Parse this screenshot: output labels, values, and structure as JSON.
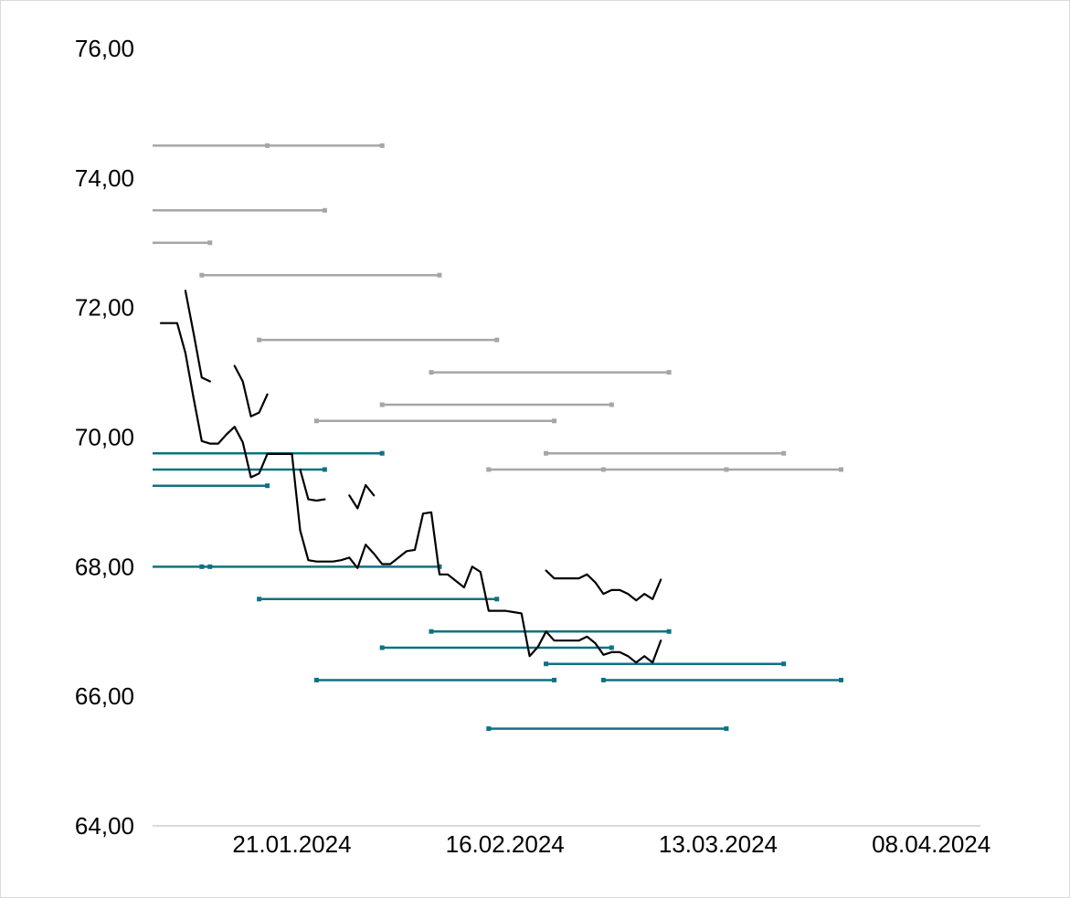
{
  "chart_data": {
    "type": "line",
    "title": "",
    "xlabel": "",
    "ylabel": "",
    "y_ticks": [
      "64,00",
      "66,00",
      "68,00",
      "70,00",
      "72,00",
      "74,00",
      "76,00"
    ],
    "x_ticks": [
      "21.01.2024",
      "16.02.2024",
      "13.03.2024",
      "08.04.2024"
    ],
    "ylim": [
      64,
      76
    ],
    "xlim": [
      "2024-01-04",
      "2024-04-14"
    ],
    "grid": false,
    "legend": "none",
    "colors": {
      "price": "#000000",
      "upper_bands": "#a6a6a6",
      "lower_bands": "#0e7282",
      "axis": "#d9d9d9"
    },
    "series": [
      {
        "color": "#000000",
        "points": [
          [
            "2024-01-05",
            71.76
          ],
          [
            "2024-01-06",
            71.76
          ],
          [
            "2024-01-07",
            71.76
          ],
          [
            "2024-01-08",
            71.3
          ],
          [
            "2024-01-09",
            70.6
          ],
          [
            "2024-01-10",
            69.94
          ],
          [
            "2024-01-11",
            69.9
          ],
          [
            "2024-01-12",
            69.9
          ],
          [
            "2024-01-13",
            70.04
          ],
          [
            "2024-01-14",
            70.16
          ],
          [
            "2024-01-15",
            69.92
          ],
          [
            "2024-01-16",
            69.38
          ],
          [
            "2024-01-17",
            69.44
          ],
          [
            "2024-01-18",
            69.74
          ],
          [
            "2024-01-19",
            69.74
          ],
          [
            "2024-01-20",
            69.74
          ],
          [
            "2024-01-21",
            69.74
          ],
          [
            "2024-01-22",
            68.56
          ],
          [
            "2024-01-23",
            68.1
          ],
          [
            "2024-01-24",
            68.08
          ],
          [
            "2024-01-25",
            68.08
          ],
          [
            "2024-01-26",
            68.08
          ],
          [
            "2024-01-27",
            68.1
          ],
          [
            "2024-01-28",
            68.14
          ],
          [
            "2024-01-29",
            67.98
          ],
          [
            "2024-01-30",
            68.34
          ],
          [
            "2024-01-31",
            68.2
          ],
          [
            "2024-02-01",
            68.04
          ],
          [
            "2024-02-02",
            68.04
          ],
          [
            "2024-02-03",
            68.14
          ],
          [
            "2024-02-04",
            68.24
          ],
          [
            "2024-02-05",
            68.26
          ],
          [
            "2024-02-06",
            68.82
          ],
          [
            "2024-02-07",
            68.84
          ],
          [
            "2024-02-08",
            67.88
          ],
          [
            "2024-02-09",
            67.88
          ],
          [
            "2024-02-10",
            67.78
          ],
          [
            "2024-02-11",
            67.68
          ],
          [
            "2024-02-12",
            68.0
          ],
          [
            "2024-02-13",
            67.92
          ],
          [
            "2024-02-14",
            67.32
          ],
          [
            "2024-02-15",
            67.32
          ],
          [
            "2024-02-16",
            67.32
          ],
          [
            "2024-02-17",
            67.3
          ],
          [
            "2024-02-18",
            67.28
          ],
          [
            "2024-02-19",
            66.62
          ],
          [
            "2024-02-20",
            66.76
          ],
          [
            "2024-02-21",
            67.0
          ],
          [
            "2024-02-22",
            66.86
          ],
          [
            "2024-02-23",
            66.86
          ],
          [
            "2024-02-24",
            66.86
          ],
          [
            "2024-02-25",
            66.86
          ],
          [
            "2024-02-26",
            66.92
          ],
          [
            "2024-02-27",
            66.82
          ],
          [
            "2024-02-28",
            66.64
          ],
          [
            "2024-02-29",
            66.68
          ],
          [
            "2024-03-01",
            66.68
          ],
          [
            "2024-03-02",
            66.62
          ],
          [
            "2024-03-03",
            66.52
          ],
          [
            "2024-03-04",
            66.62
          ],
          [
            "2024-03-05",
            66.52
          ],
          [
            "2024-03-06",
            66.86
          ]
        ]
      },
      {
        "color": "#000000",
        "points": [
          [
            "2024-01-08",
            72.26
          ],
          [
            "2024-01-09",
            71.6
          ],
          [
            "2024-01-10",
            70.92
          ],
          [
            "2024-01-11",
            70.86
          ]
        ]
      },
      {
        "color": "#000000",
        "points": [
          [
            "2024-01-14",
            71.1
          ],
          [
            "2024-01-15",
            70.86
          ],
          [
            "2024-01-16",
            70.32
          ],
          [
            "2024-01-17",
            70.38
          ],
          [
            "2024-01-18",
            70.66
          ]
        ]
      },
      {
        "color": "#000000",
        "points": [
          [
            "2024-01-22",
            69.5
          ],
          [
            "2024-01-23",
            69.04
          ],
          [
            "2024-01-24",
            69.02
          ],
          [
            "2024-01-25",
            69.04
          ]
        ]
      },
      {
        "color": "#000000",
        "points": [
          [
            "2024-01-28",
            69.1
          ],
          [
            "2024-01-29",
            68.9
          ],
          [
            "2024-01-30",
            69.26
          ],
          [
            "2024-01-31",
            69.1
          ]
        ]
      },
      {
        "color": "#000000",
        "points": [
          [
            "2024-02-21",
            67.94
          ],
          [
            "2024-02-22",
            67.82
          ],
          [
            "2024-02-23",
            67.82
          ],
          [
            "2024-02-24",
            67.82
          ],
          [
            "2024-02-25",
            67.82
          ],
          [
            "2024-02-26",
            67.88
          ],
          [
            "2024-02-27",
            67.76
          ],
          [
            "2024-02-28",
            67.58
          ],
          [
            "2024-02-29",
            67.64
          ],
          [
            "2024-03-01",
            67.64
          ],
          [
            "2024-03-02",
            67.58
          ],
          [
            "2024-03-03",
            67.48
          ],
          [
            "2024-03-04",
            67.58
          ],
          [
            "2024-03-05",
            67.5
          ],
          [
            "2024-03-06",
            67.8
          ]
        ]
      }
    ],
    "bands": [
      {
        "color": "#a6a6a6",
        "y": 74.5,
        "points": [
          "2024-01-04",
          "2024-01-18",
          "2024-02-01"
        ]
      },
      {
        "color": "#a6a6a6",
        "y": 73.5,
        "points": [
          "2024-01-04",
          "2024-01-25"
        ]
      },
      {
        "color": "#a6a6a6",
        "y": 73.0,
        "points": [
          "2024-01-04",
          "2024-01-11"
        ]
      },
      {
        "color": "#a6a6a6",
        "y": 72.5,
        "points": [
          "2024-01-10",
          "2024-02-08"
        ]
      },
      {
        "color": "#a6a6a6",
        "y": 71.5,
        "points": [
          "2024-01-17",
          "2024-02-15"
        ]
      },
      {
        "color": "#a6a6a6",
        "y": 71.0,
        "points": [
          "2024-02-07",
          "2024-03-07"
        ]
      },
      {
        "color": "#a6a6a6",
        "y": 70.5,
        "points": [
          "2024-02-01",
          "2024-02-29"
        ]
      },
      {
        "color": "#a6a6a6",
        "y": 70.25,
        "points": [
          "2024-01-24",
          "2024-02-22"
        ]
      },
      {
        "color": "#a6a6a6",
        "y": 69.75,
        "points": [
          "2024-02-21",
          "2024-03-21"
        ]
      },
      {
        "color": "#a6a6a6",
        "y": 69.5,
        "points": [
          "2024-02-14",
          "2024-02-28",
          "2024-03-14",
          "2024-03-28"
        ]
      },
      {
        "color": "#0e7282",
        "y": 69.75,
        "points": [
          "2024-01-04",
          "2024-02-01"
        ]
      },
      {
        "color": "#0e7282",
        "y": 69.5,
        "points": [
          "2024-01-04",
          "2024-01-25"
        ]
      },
      {
        "color": "#0e7282",
        "y": 69.25,
        "points": [
          "2024-01-04",
          "2024-01-18"
        ]
      },
      {
        "color": "#0e7282",
        "y": 68.0,
        "points": [
          "2024-01-04",
          "2024-01-10",
          "2024-01-11",
          "2024-02-08"
        ]
      },
      {
        "color": "#0e7282",
        "y": 67.5,
        "points": [
          "2024-01-17",
          "2024-02-15"
        ]
      },
      {
        "color": "#0e7282",
        "y": 67.0,
        "points": [
          "2024-02-07",
          "2024-03-07"
        ]
      },
      {
        "color": "#0e7282",
        "y": 66.75,
        "points": [
          "2024-02-01",
          "2024-02-29"
        ]
      },
      {
        "color": "#0e7282",
        "y": 66.5,
        "points": [
          "2024-02-21",
          "2024-03-21"
        ]
      },
      {
        "color": "#0e7282",
        "y": 66.25,
        "points": [
          "2024-01-24",
          "2024-02-22"
        ]
      },
      {
        "color": "#0e7282",
        "y": 66.25,
        "points": [
          "2024-02-28",
          "2024-03-28"
        ]
      },
      {
        "color": "#0e7282",
        "y": 65.5,
        "points": [
          "2024-02-14",
          "2024-03-14"
        ]
      }
    ]
  }
}
